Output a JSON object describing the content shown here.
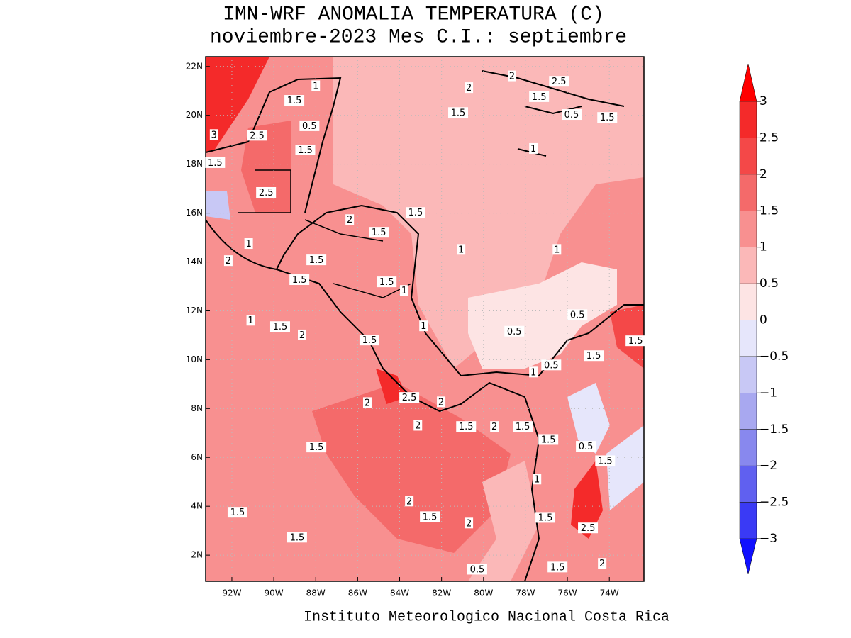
{
  "title": "IMN-WRF  ANOMALIA TEMPERATURA (C)",
  "subtitle": "noviembre-2023 Mes C.I.: septiembre",
  "footer": "Instituto Meteorologico Nacional Costa Rica",
  "map": {
    "xlim": [
      -93.25,
      -72.35
    ],
    "ylim": [
      0.93,
      22.4
    ],
    "xticks": [
      {
        "value": -92,
        "label": "92W"
      },
      {
        "value": -90,
        "label": "90W"
      },
      {
        "value": -88,
        "label": "88W"
      },
      {
        "value": -86,
        "label": "86W"
      },
      {
        "value": -84,
        "label": "84W"
      },
      {
        "value": -82,
        "label": "82W"
      },
      {
        "value": -80,
        "label": "80W"
      },
      {
        "value": -78,
        "label": "78W"
      },
      {
        "value": -76,
        "label": "76W"
      },
      {
        "value": -74,
        "label": "74W"
      }
    ],
    "yticks": [
      {
        "value": 2,
        "label": "2N"
      },
      {
        "value": 4,
        "label": "4N"
      },
      {
        "value": 6,
        "label": "6N"
      },
      {
        "value": 8,
        "label": "8N"
      },
      {
        "value": 10,
        "label": "10N"
      },
      {
        "value": 12,
        "label": "12N"
      },
      {
        "value": 14,
        "label": "14N"
      },
      {
        "value": 16,
        "label": "16N"
      },
      {
        "value": 18,
        "label": "18N"
      },
      {
        "value": 20,
        "label": "20N"
      },
      {
        "value": 22,
        "label": "22N"
      }
    ],
    "grid": true,
    "contour_labels": [
      {
        "value": 1,
        "lon": -88.0,
        "lat": 21.2
      },
      {
        "value": 1.5,
        "lon": -89.02,
        "lat": 20.6
      },
      {
        "value": 3,
        "lon": -92.85,
        "lat": 19.2
      },
      {
        "value": 2.5,
        "lon": -90.8,
        "lat": 19.17
      },
      {
        "value": 0.5,
        "lon": -88.3,
        "lat": 19.56
      },
      {
        "value": 1.5,
        "lon": -88.5,
        "lat": 18.57
      },
      {
        "value": 1.5,
        "lon": -92.8,
        "lat": 18.05
      },
      {
        "value": 2.5,
        "lon": -90.37,
        "lat": 16.83
      },
      {
        "value": 1,
        "lon": -91.2,
        "lat": 14.74
      },
      {
        "value": 2,
        "lon": -92.17,
        "lat": 14.04
      },
      {
        "value": 1.5,
        "lon": -87.97,
        "lat": 14.07
      },
      {
        "value": 1.5,
        "lon": -88.78,
        "lat": 13.26
      },
      {
        "value": 2,
        "lon": -86.38,
        "lat": 15.72
      },
      {
        "value": 1.5,
        "lon": -84.99,
        "lat": 15.2
      },
      {
        "value": 1.5,
        "lon": -83.24,
        "lat": 16.01
      },
      {
        "value": 2,
        "lon": -80.7,
        "lat": 21.12
      },
      {
        "value": 1.5,
        "lon": -81.21,
        "lat": 20.1
      },
      {
        "value": 2,
        "lon": -78.64,
        "lat": 21.6
      },
      {
        "value": 2.5,
        "lon": -76.4,
        "lat": 21.38
      },
      {
        "value": 1.5,
        "lon": -77.35,
        "lat": 20.75
      },
      {
        "value": 0.5,
        "lon": -75.8,
        "lat": 20.02
      },
      {
        "value": 1.5,
        "lon": -74.1,
        "lat": 19.9
      },
      {
        "value": 1,
        "lon": -77.62,
        "lat": 18.63
      },
      {
        "value": 1,
        "lon": -81.07,
        "lat": 14.5
      },
      {
        "value": 1,
        "lon": -76.5,
        "lat": 14.5
      },
      {
        "value": 1.5,
        "lon": -84.62,
        "lat": 13.17
      },
      {
        "value": 1,
        "lon": -83.78,
        "lat": 12.82
      },
      {
        "value": 1,
        "lon": -91.1,
        "lat": 11.6
      },
      {
        "value": 1.5,
        "lon": -89.7,
        "lat": 11.34
      },
      {
        "value": 2,
        "lon": -88.65,
        "lat": 11.0
      },
      {
        "value": 1.5,
        "lon": -85.44,
        "lat": 10.79
      },
      {
        "value": 1,
        "lon": -82.86,
        "lat": 11.37
      },
      {
        "value": 0.5,
        "lon": -78.53,
        "lat": 11.15
      },
      {
        "value": 0.5,
        "lon": -75.52,
        "lat": 11.83
      },
      {
        "value": 1.5,
        "lon": -72.75,
        "lat": 10.76
      },
      {
        "value": 1.5,
        "lon": -74.75,
        "lat": 10.15
      },
      {
        "value": 0.5,
        "lon": -76.77,
        "lat": 9.77
      },
      {
        "value": 1,
        "lon": -77.62,
        "lat": 9.48
      },
      {
        "value": 2.5,
        "lon": -83.54,
        "lat": 8.44
      },
      {
        "value": 2,
        "lon": -82.02,
        "lat": 8.26
      },
      {
        "value": 2,
        "lon": -85.54,
        "lat": 8.23
      },
      {
        "value": 2,
        "lon": -83.13,
        "lat": 7.3
      },
      {
        "value": 1.5,
        "lon": -80.83,
        "lat": 7.25
      },
      {
        "value": 2,
        "lon": -79.48,
        "lat": 7.25
      },
      {
        "value": 1.5,
        "lon": -78.13,
        "lat": 7.25
      },
      {
        "value": 1.5,
        "lon": -76.91,
        "lat": 6.72
      },
      {
        "value": 1.5,
        "lon": -87.97,
        "lat": 6.41
      },
      {
        "value": 0.5,
        "lon": -75.12,
        "lat": 6.44
      },
      {
        "value": 1.5,
        "lon": -74.2,
        "lat": 5.85
      },
      {
        "value": 1,
        "lon": -77.45,
        "lat": 5.1
      },
      {
        "value": 2,
        "lon": -83.54,
        "lat": 4.2
      },
      {
        "value": 1.5,
        "lon": -82.56,
        "lat": 3.56
      },
      {
        "value": 2,
        "lon": -80.7,
        "lat": 3.3
      },
      {
        "value": 1.5,
        "lon": -91.73,
        "lat": 3.74
      },
      {
        "value": 1.5,
        "lon": -88.89,
        "lat": 2.72
      },
      {
        "value": 1.5,
        "lon": -77.05,
        "lat": 3.53
      },
      {
        "value": 2.5,
        "lon": -75.02,
        "lat": 3.1
      },
      {
        "value": 0.5,
        "lon": -80.3,
        "lat": 1.41
      },
      {
        "value": 1.5,
        "lon": -76.47,
        "lat": 1.5
      },
      {
        "value": 2,
        "lon": -74.34,
        "lat": 1.65
      }
    ]
  },
  "colorbar": {
    "levels": [
      {
        "value": -3,
        "label": "−3"
      },
      {
        "value": -2.5,
        "label": "−2.5"
      },
      {
        "value": -2,
        "label": "−2"
      },
      {
        "value": -1.5,
        "label": "−1.5"
      },
      {
        "value": -1,
        "label": "−1"
      },
      {
        "value": -0.5,
        "label": "−0.5"
      },
      0,
      0.5,
      1,
      1.5,
      2,
      2.5,
      3
    ],
    "colors": [
      "#1010ff",
      "#3a3af5",
      "#6060f0",
      "#8888ee",
      "#a8a8f0",
      "#c8c8f5",
      "#e6e6fb",
      "#fde4e4",
      "#fbb8b8",
      "#f89090",
      "#f46a6a",
      "#f44848",
      "#f42a2a",
      "#ff0000"
    ]
  }
}
